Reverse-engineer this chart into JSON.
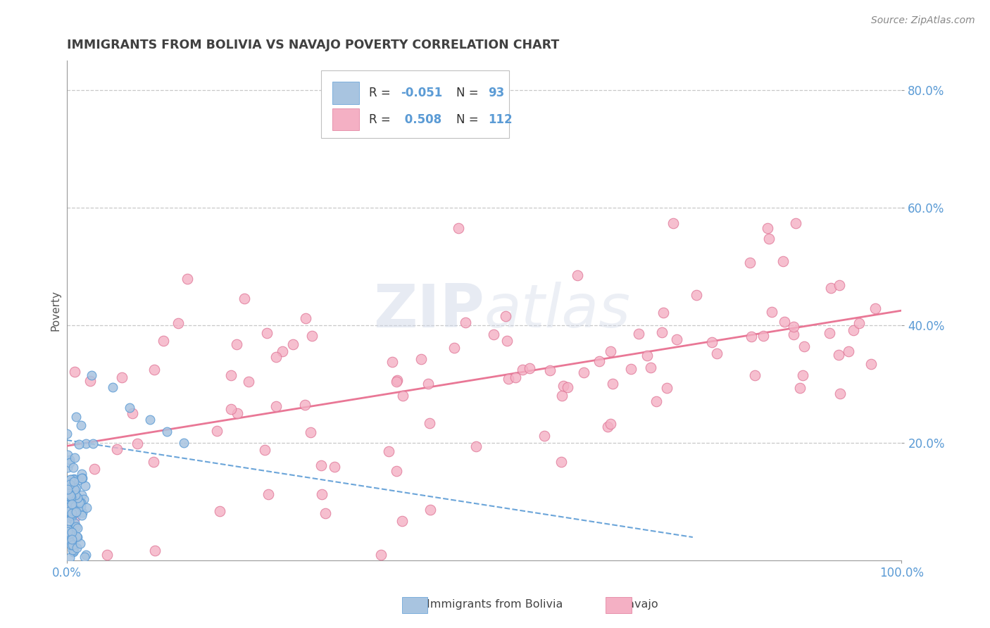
{
  "title": "IMMIGRANTS FROM BOLIVIA VS NAVAJO POVERTY CORRELATION CHART",
  "source_text": "Source: ZipAtlas.com",
  "ylabel": "Poverty",
  "xlim": [
    0,
    1
  ],
  "ylim": [
    0,
    0.85
  ],
  "y_ticks": [
    0.2,
    0.4,
    0.6,
    0.8
  ],
  "y_tick_labels": [
    "20.0%",
    "40.0%",
    "60.0%",
    "80.0%"
  ],
  "background_color": "#ffffff",
  "grid_color": "#c8c8c8",
  "watermark": "ZIPAtlas",
  "blue_color": "#a8c4e0",
  "blue_edge": "#5b9bd5",
  "pink_color": "#f4b0c4",
  "pink_edge": "#e07898",
  "blue_line_color": "#5b9bd5",
  "pink_line_color": "#e87090",
  "title_color": "#404040",
  "axis_label_color": "#5b9bd5",
  "text_dark": "#333333",
  "seed": 42,
  "n_blue": 93,
  "n_pink": 112,
  "blue_trend_x": [
    0.0,
    0.75
  ],
  "blue_trend_y": [
    0.205,
    0.04
  ],
  "pink_trend_x": [
    0.0,
    1.0
  ],
  "pink_trend_y": [
    0.195,
    0.425
  ]
}
